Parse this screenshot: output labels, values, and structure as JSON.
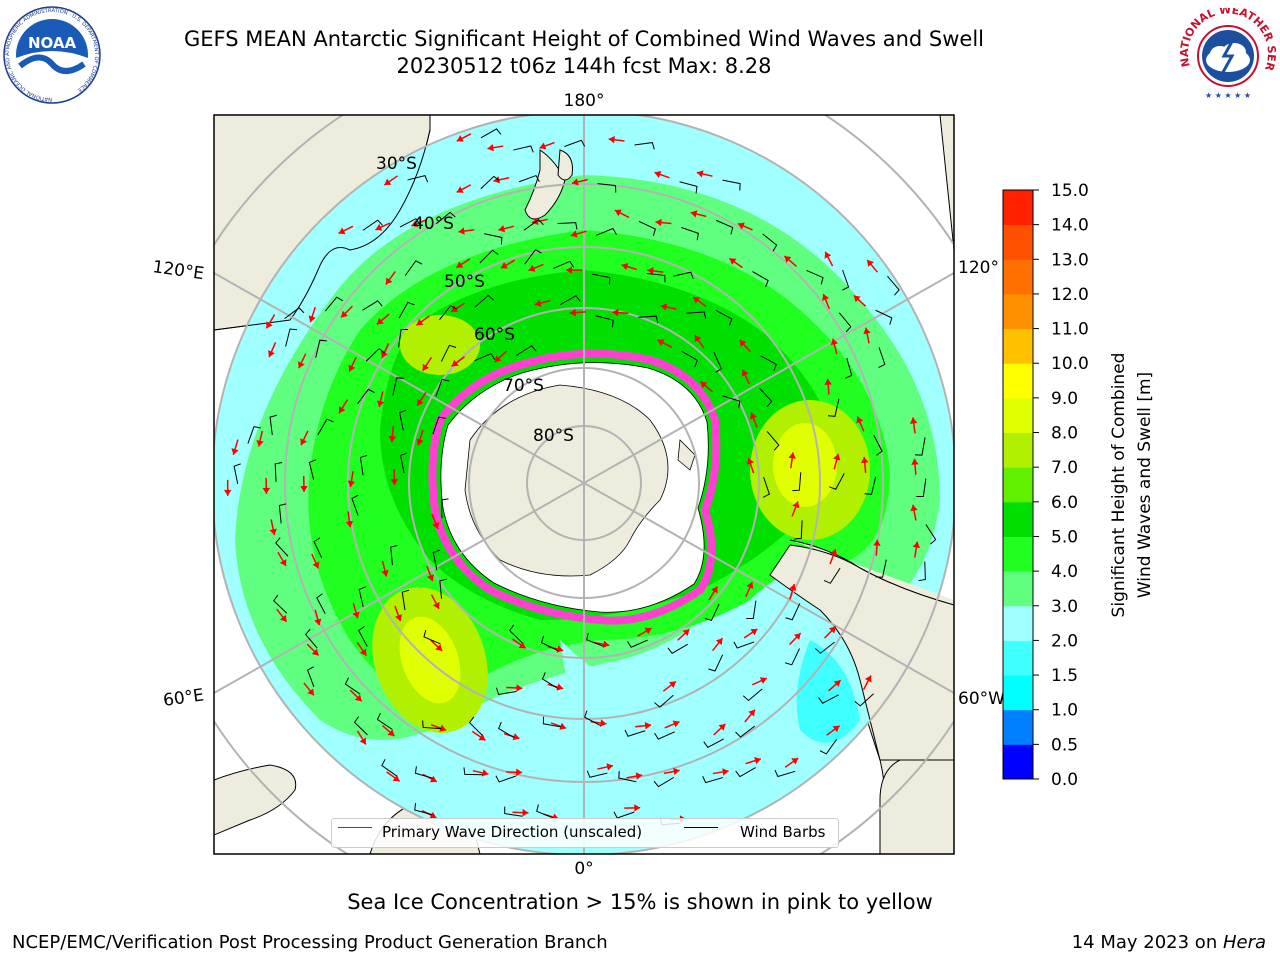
{
  "header": {
    "title_line1": "GEFS MEAN Antarctic Significant Height of Combined Wind Waves and Swell",
    "title_line2": "20230512 t06z 144h fcst   Max: 8.28"
  },
  "logos": {
    "noaa_text": "NOAA",
    "noaa_ring_text": "NATIONAL OCEANIC AND ATMOSPHERIC ADMINISTRATION · U.S. DEPARTMENT OF COMMERCE",
    "nws_ring_text": "NATIONAL WEATHER SERVICE"
  },
  "map": {
    "projection": "south-polar-stereographic",
    "longitude_labels": [
      "180°",
      "120°E",
      "120°",
      "60°E",
      "60°W",
      "0°"
    ],
    "latitude_labels": [
      "30°S",
      "40°S",
      "50°S",
      "60°S",
      "70°S",
      "80°S"
    ],
    "colors": {
      "land": "#eeecdd",
      "ice_shelf": "#ffffff",
      "sea_ice": "#ff40d0",
      "wave_arrow": "#ff0000",
      "wind_barb": "#000000",
      "graticule": "#b3b3b3"
    }
  },
  "colorbar": {
    "label_line1": "Significant Height of Combined",
    "label_line2": "Wind Waves and Swell [m]",
    "ticks": [
      "0.0",
      "0.5",
      "1.0",
      "1.5",
      "2.0",
      "3.0",
      "4.0",
      "5.0",
      "6.0",
      "7.0",
      "8.0",
      "9.0",
      "10.0",
      "11.0",
      "12.0",
      "13.0",
      "14.0",
      "15.0"
    ],
    "colors": [
      "#0000ff",
      "#0080ff",
      "#00ffff",
      "#40ffff",
      "#a0ffff",
      "#60ff80",
      "#20ff20",
      "#00e000",
      "#60f000",
      "#b0f000",
      "#e0ff00",
      "#ffff00",
      "#ffc000",
      "#ff9000",
      "#ff7000",
      "#ff5000",
      "#ff2000"
    ]
  },
  "legend": {
    "wave_label": "Primary Wave Direction (unscaled)",
    "barb_label": "Wind Barbs"
  },
  "note": "Sea Ice Concentration > 15% is shown in pink to yellow",
  "footer": {
    "credit": "NCEP/EMC/Verification Post Processing Product Generation Branch",
    "date": "14 May 2023 on ",
    "system": "Hera"
  }
}
